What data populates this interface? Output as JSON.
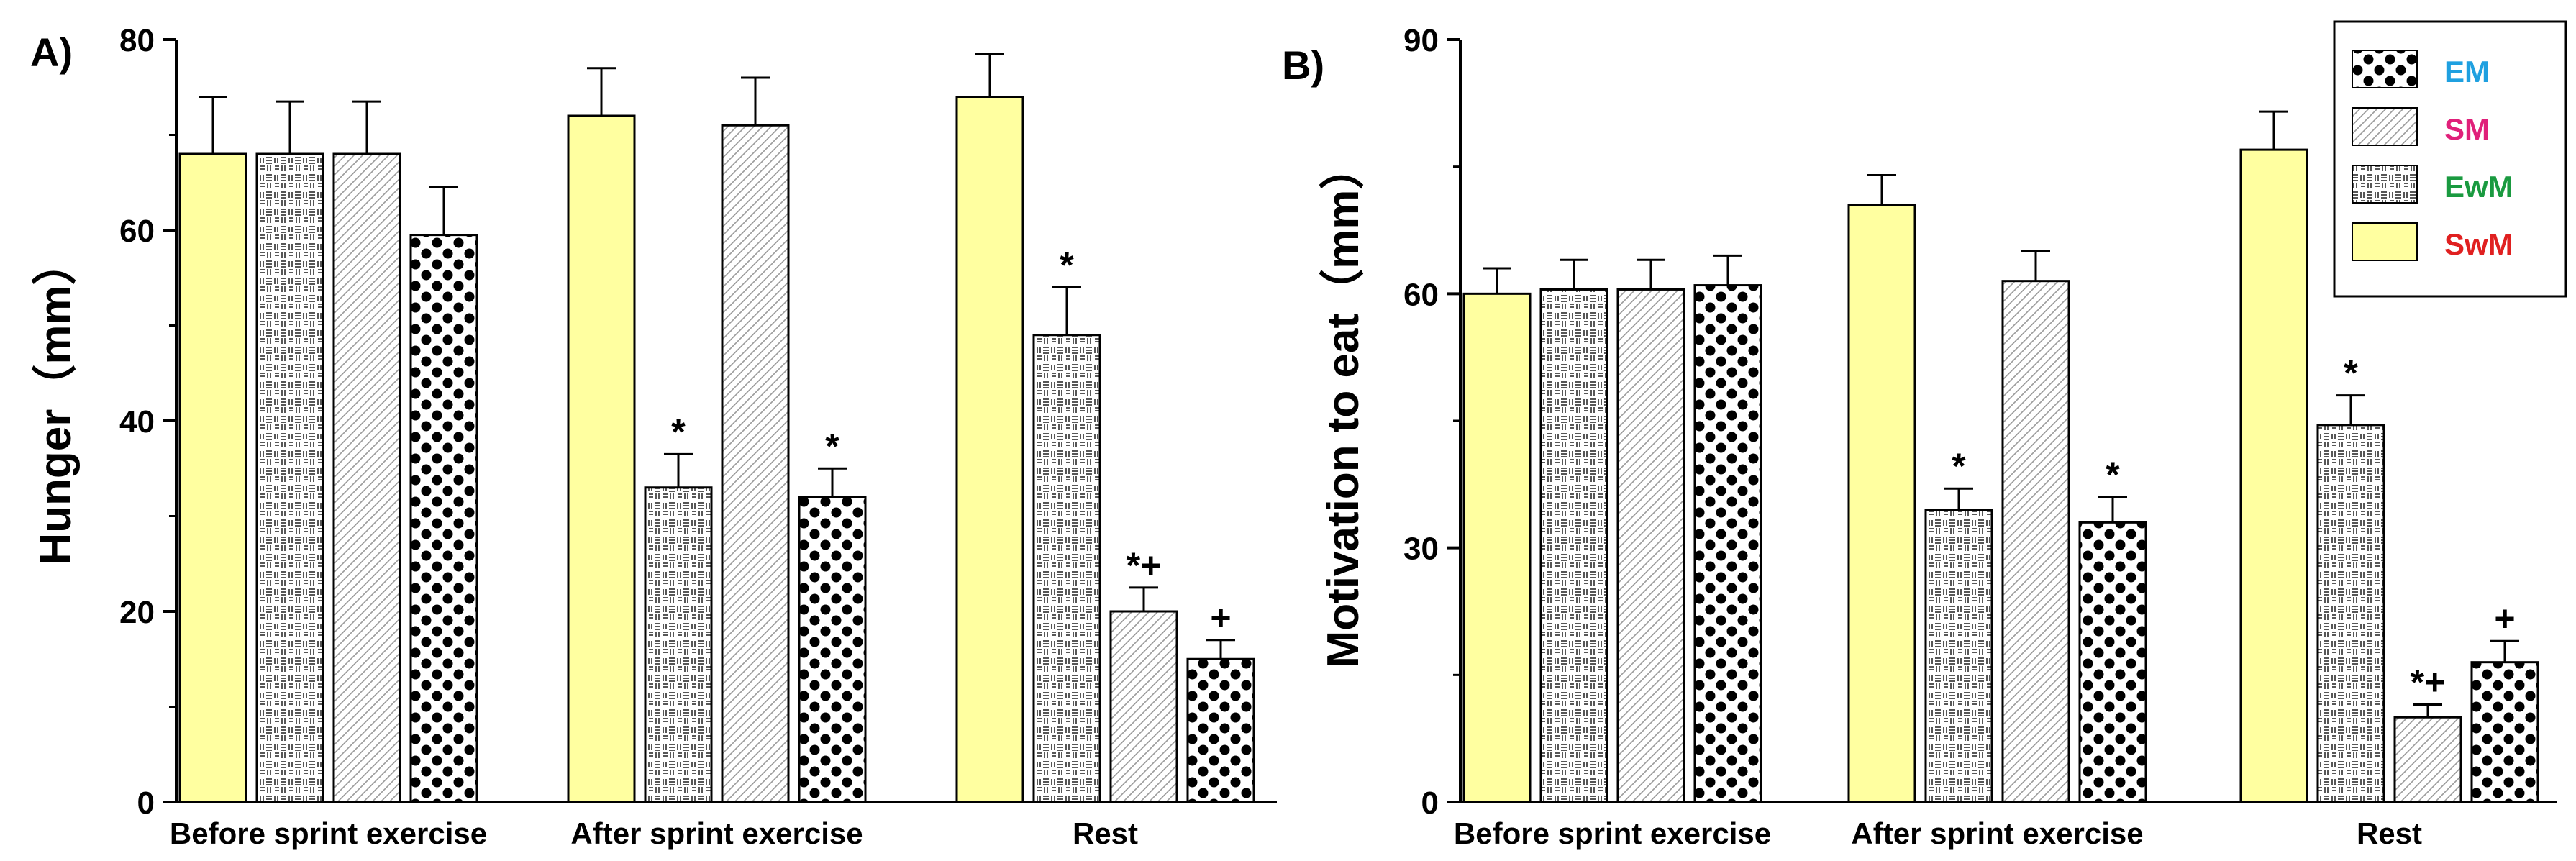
{
  "colors": {
    "SwM": "#ffffa0",
    "bar_stroke": "#000000",
    "background": "#ffffff"
  },
  "legend": {
    "items": [
      {
        "key": "EM",
        "label": "EM",
        "color": "#1fa0e0",
        "pattern": "dots"
      },
      {
        "key": "SM",
        "label": "SM",
        "color": "#e0207a",
        "pattern": "diagonal"
      },
      {
        "key": "EwM",
        "label": "EwM",
        "color": "#1a9a40",
        "pattern": "grid"
      },
      {
        "key": "SwM",
        "label": "SwM",
        "color": "#e02020",
        "pattern": "yellow"
      }
    ]
  },
  "chart_data": [
    {
      "panel_label": "A)",
      "type": "bar",
      "ylabel": "Hunger（mm）",
      "ylim": [
        0,
        80
      ],
      "yticks": [
        0,
        20,
        40,
        60,
        80
      ],
      "categories": [
        "Before sprint exercise",
        "After sprint exercise",
        "Rest"
      ],
      "series": [
        {
          "name": "SwM",
          "values": [
            68,
            72,
            74
          ],
          "errors": [
            6,
            5,
            4.5
          ],
          "annotations": [
            "",
            "",
            ""
          ]
        },
        {
          "name": "EwM",
          "values": [
            68,
            33,
            49
          ],
          "errors": [
            5.5,
            3.5,
            5
          ],
          "annotations": [
            "",
            "*",
            "*"
          ]
        },
        {
          "name": "SM",
          "values": [
            68,
            71,
            20
          ],
          "errors": [
            5.5,
            5,
            2.5
          ],
          "annotations": [
            "",
            "",
            "*+"
          ]
        },
        {
          "name": "EM",
          "values": [
            59.5,
            32,
            15
          ],
          "errors": [
            5,
            3,
            2
          ],
          "annotations": [
            "",
            "*",
            "+"
          ]
        }
      ]
    },
    {
      "panel_label": "B)",
      "type": "bar",
      "ylabel": "Motivation to eat（mm）",
      "ylim": [
        0,
        90
      ],
      "yticks": [
        0,
        30,
        60,
        90
      ],
      "categories": [
        "Before sprint exercise",
        "After sprint exercise",
        "Rest"
      ],
      "series": [
        {
          "name": "SwM",
          "values": [
            60,
            70.5,
            77
          ],
          "errors": [
            3,
            3.5,
            4.5
          ],
          "annotations": [
            "",
            "",
            ""
          ]
        },
        {
          "name": "EwM",
          "values": [
            60.5,
            34.5,
            44.5
          ],
          "errors": [
            3.5,
            2.5,
            3.5
          ],
          "annotations": [
            "",
            "*",
            "*"
          ]
        },
        {
          "name": "SM",
          "values": [
            60.5,
            61.5,
            10
          ],
          "errors": [
            3.5,
            3.5,
            1.5
          ],
          "annotations": [
            "",
            "",
            "*+"
          ]
        },
        {
          "name": "EM",
          "values": [
            61,
            33,
            16.5
          ],
          "errors": [
            3.5,
            3,
            2.5
          ],
          "annotations": [
            "",
            "*",
            "+"
          ]
        }
      ]
    }
  ]
}
